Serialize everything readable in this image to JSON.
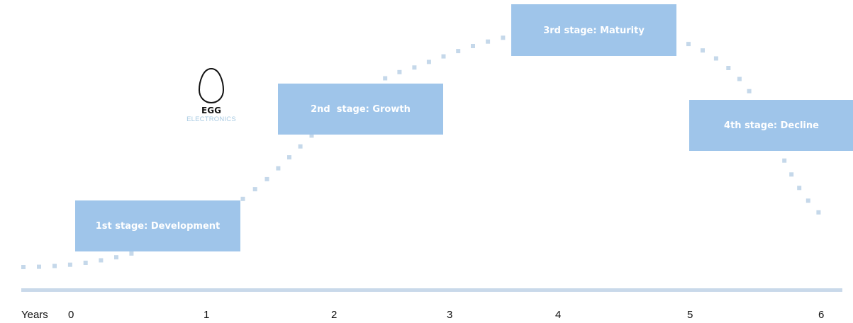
{
  "diagram": {
    "stages": [
      {
        "label": "1st stage: Development"
      },
      {
        "label": "2nd  stage: Growth"
      },
      {
        "label": "3rd stage: Maturity"
      },
      {
        "label": "4th stage: Decline"
      }
    ],
    "axis": {
      "unit_label": "Years",
      "ticks": [
        "0",
        "1",
        "2",
        "3",
        "4",
        "5",
        "6"
      ]
    },
    "logo": {
      "name": "EGG",
      "subtitle": "ELECTRONICS"
    },
    "colors": {
      "stage_fill": "#9fc5ea",
      "curve_dots": "#c5d8ea",
      "axis_line": "#c9d9ea",
      "logo_subtitle": "#a9cbe3"
    }
  }
}
